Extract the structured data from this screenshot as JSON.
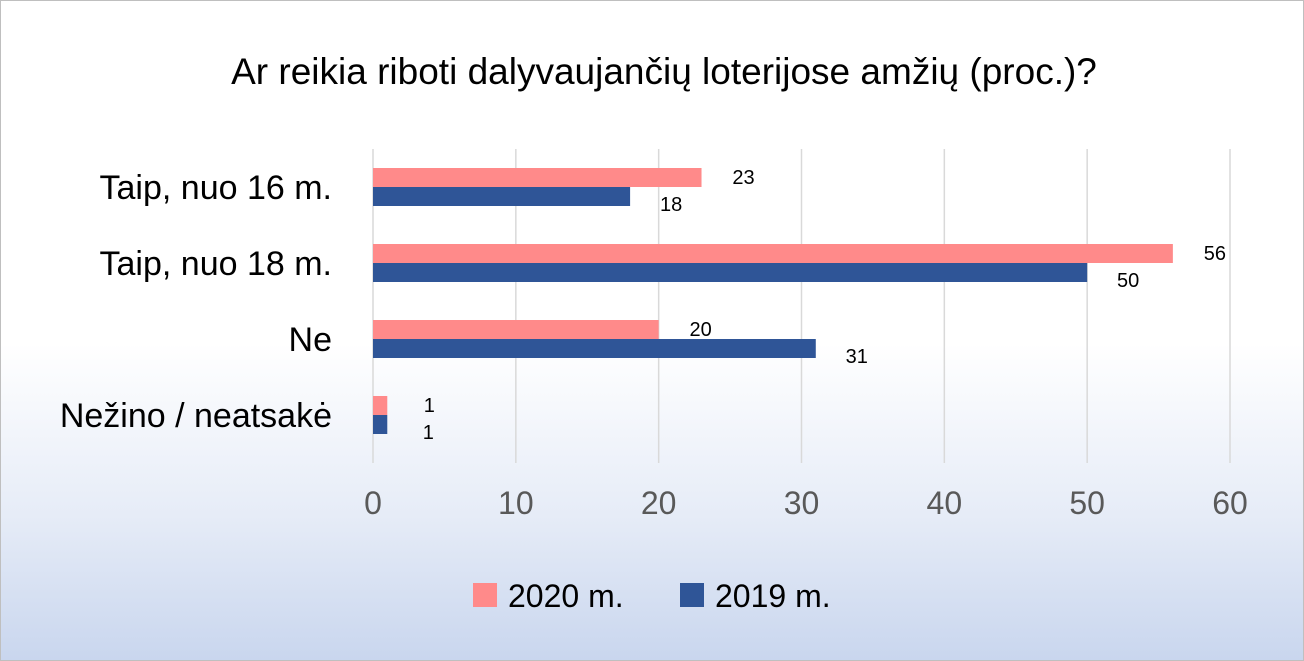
{
  "chart_data": {
    "type": "bar",
    "orientation": "horizontal",
    "title": "Ar reikia riboti dalyvaujančių loterijose amžių (proc.)?",
    "categories": [
      "Taip, nuo 16 m.",
      "Taip, nuo 18 m.",
      "Ne",
      "Nežino / neatsakė"
    ],
    "series": [
      {
        "name": "2020 m.",
        "color": "#ff8a8a",
        "values": [
          23,
          56,
          20,
          1
        ]
      },
      {
        "name": "2019 m.",
        "color": "#2f5597",
        "values": [
          18,
          50,
          31,
          1
        ]
      }
    ],
    "xlim": [
      0,
      60
    ],
    "xticks": [
      0,
      10,
      20,
      30,
      40,
      50,
      60
    ],
    "grid": true,
    "legend": "bottom"
  }
}
